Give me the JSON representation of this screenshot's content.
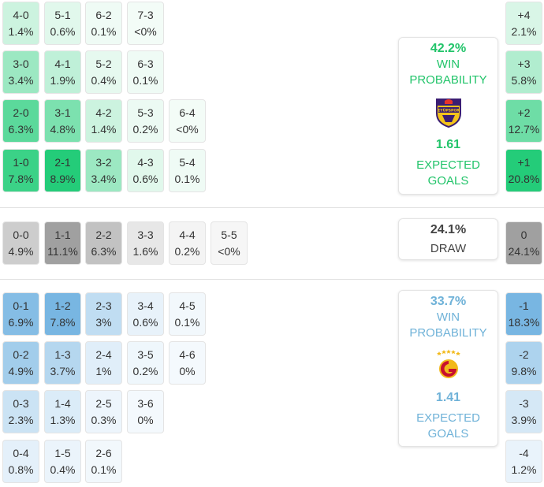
{
  "home": {
    "win_pct": "42.2%",
    "win_label": "WIN PROBABILITY",
    "xg": "1.61",
    "xg_label": "EXPECTED GOALS",
    "crest_text": "EYÜPSPOR",
    "color": "#22c46a"
  },
  "draw": {
    "pct": "24.1%",
    "label": "DRAW"
  },
  "away": {
    "win_pct": "33.7%",
    "win_label": "WIN PROBABILITY",
    "xg": "1.41",
    "xg_label": "EXPECTED GOALS",
    "color": "#6fb2d8"
  },
  "home_scores": [
    [
      {
        "s": "4-0",
        "p": "1.4%"
      },
      {
        "s": "5-1",
        "p": "0.6%"
      },
      {
        "s": "6-2",
        "p": "0.1%"
      },
      {
        "s": "7-3",
        "p": "<0%"
      }
    ],
    [
      {
        "s": "3-0",
        "p": "3.4%"
      },
      {
        "s": "4-1",
        "p": "1.9%"
      },
      {
        "s": "5-2",
        "p": "0.4%"
      },
      {
        "s": "6-3",
        "p": "0.1%"
      }
    ],
    [
      {
        "s": "2-0",
        "p": "6.3%"
      },
      {
        "s": "3-1",
        "p": "4.8%"
      },
      {
        "s": "4-2",
        "p": "1.4%"
      },
      {
        "s": "5-3",
        "p": "0.2%"
      },
      {
        "s": "6-4",
        "p": "<0%"
      }
    ],
    [
      {
        "s": "1-0",
        "p": "7.8%"
      },
      {
        "s": "2-1",
        "p": "8.9%"
      },
      {
        "s": "3-2",
        "p": "3.4%"
      },
      {
        "s": "4-3",
        "p": "0.6%"
      },
      {
        "s": "5-4",
        "p": "0.1%"
      }
    ]
  ],
  "draw_scores": [
    [
      {
        "s": "0-0",
        "p": "4.9%"
      },
      {
        "s": "1-1",
        "p": "11.1%"
      },
      {
        "s": "2-2",
        "p": "6.3%"
      },
      {
        "s": "3-3",
        "p": "1.6%"
      },
      {
        "s": "4-4",
        "p": "0.2%"
      },
      {
        "s": "5-5",
        "p": "<0%"
      }
    ]
  ],
  "away_scores": [
    [
      {
        "s": "0-1",
        "p": "6.9%"
      },
      {
        "s": "1-2",
        "p": "7.8%"
      },
      {
        "s": "2-3",
        "p": "3%"
      },
      {
        "s": "3-4",
        "p": "0.6%"
      },
      {
        "s": "4-5",
        "p": "0.1%"
      }
    ],
    [
      {
        "s": "0-2",
        "p": "4.9%"
      },
      {
        "s": "1-3",
        "p": "3.7%"
      },
      {
        "s": "2-4",
        "p": "1%"
      },
      {
        "s": "3-5",
        "p": "0.2%"
      },
      {
        "s": "4-6",
        "p": "0%"
      }
    ],
    [
      {
        "s": "0-3",
        "p": "2.3%"
      },
      {
        "s": "1-4",
        "p": "1.3%"
      },
      {
        "s": "2-5",
        "p": "0.3%"
      },
      {
        "s": "3-6",
        "p": "0%"
      }
    ],
    [
      {
        "s": "0-4",
        "p": "0.8%"
      },
      {
        "s": "1-5",
        "p": "0.4%"
      },
      {
        "s": "2-6",
        "p": "0.1%"
      }
    ]
  ],
  "margins_home": [
    {
      "s": "+4",
      "p": "2.1%"
    },
    {
      "s": "+3",
      "p": "5.8%"
    },
    {
      "s": "+2",
      "p": "12.7%"
    },
    {
      "s": "+1",
      "p": "20.8%"
    }
  ],
  "margin_draw": {
    "s": "0",
    "p": "24.1%"
  },
  "margins_away": [
    {
      "s": "-1",
      "p": "18.3%"
    },
    {
      "s": "-2",
      "p": "9.8%"
    },
    {
      "s": "-3",
      "p": "3.9%"
    },
    {
      "s": "-4",
      "p": "1.2%"
    }
  ]
}
